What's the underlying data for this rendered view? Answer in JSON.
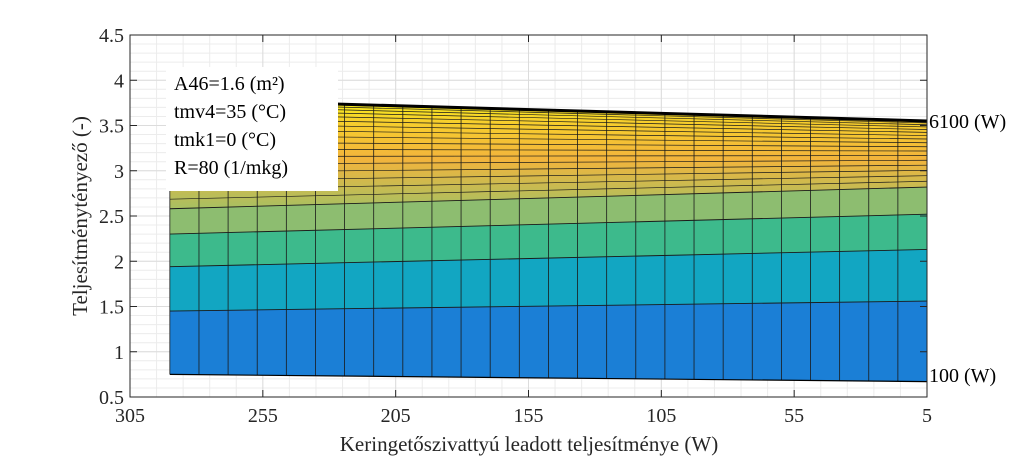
{
  "chart_data": {
    "type": "area",
    "xlabel": "Keringetőszivattyú leadott teljesítménye (W)",
    "ylabel": "Teljesítménytényező (-)",
    "x_reversed": true,
    "xlim": [
      5,
      305
    ],
    "ylim": [
      0.5,
      4.5
    ],
    "x_ticks": [
      305,
      255,
      205,
      155,
      105,
      55,
      5
    ],
    "y_ticks": [
      0.5,
      1,
      1.5,
      2,
      2.5,
      3,
      3.5,
      4,
      4.5
    ],
    "x_tick_labels": [
      "305",
      "255",
      "205",
      "155",
      "105",
      "55",
      "5"
    ],
    "y_tick_labels": [
      "0.5",
      "1",
      "1.5",
      "2",
      "2.5",
      "3",
      "3.5",
      "4",
      "4.5"
    ],
    "grid": true,
    "x": [
      290,
      5
    ],
    "series": [
      {
        "name": "100 (W)",
        "values": [
          0.75,
          0.67
        ]
      },
      {
        "name": "6100 (W)",
        "values": [
          3.79,
          3.55
        ]
      }
    ],
    "surface_layers": [
      {
        "bottom": [
          0.75,
          0.67
        ],
        "top": [
          1.45,
          1.56
        ],
        "color": "#1b7fd6"
      },
      {
        "bottom": [
          1.45,
          1.56
        ],
        "top": [
          1.94,
          2.13
        ],
        "color": "#12a6c2"
      },
      {
        "bottom": [
          1.94,
          2.13
        ],
        "top": [
          2.3,
          2.52
        ],
        "color": "#3dba8c"
      },
      {
        "bottom": [
          2.3,
          2.52
        ],
        "top": [
          2.58,
          2.82
        ],
        "color": "#8dbd70"
      },
      {
        "bottom": [
          2.58,
          2.82
        ],
        "top": [
          3.79,
          3.55
        ],
        "color": "#f4b93a"
      }
    ],
    "annotations": [
      {
        "text": "100 (W)",
        "x": 5,
        "y": 0.72
      },
      {
        "text": "6100 (W)",
        "x": 5,
        "y": 3.55
      }
    ],
    "legend_box": {
      "position": "top-left",
      "lines": [
        "A46=1.6 (m²)",
        "tmv4=35 (°C)",
        "tmk1=0 (°C)",
        "R=80 (1/mkg)"
      ]
    }
  }
}
